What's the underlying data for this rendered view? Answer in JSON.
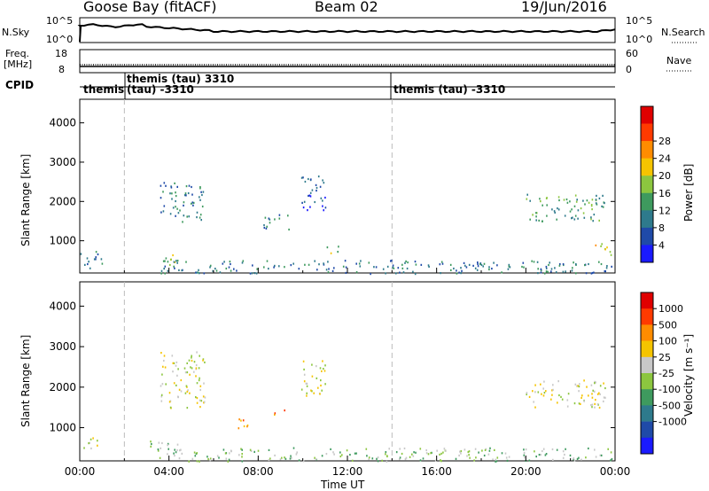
{
  "header": {
    "station": "Goose Bay (fitACF)",
    "beam": "Beam 02",
    "date": "19/Jun/2016"
  },
  "strips": {
    "nsky_label": "N.Sky",
    "nsky_ticks": [
      "10^5",
      "10^0"
    ],
    "nsearch_label": "N.Search",
    "nsearch_ticks": [
      "10^5",
      "10^0"
    ],
    "freq_label": "Freq.",
    "freq_unit": "[MHz]",
    "freq_ticks": [
      "18",
      "8"
    ],
    "nave_label": "Nave",
    "nave_ticks": [
      "60",
      "0"
    ],
    "cpid_label": "CPID",
    "cpid_segments": [
      "themis",
      "themis (tau) 3310",
      "(tau) -3310",
      "themis (tau) -3310"
    ]
  },
  "chart_data": [
    {
      "type": "heatmap",
      "panel": "power",
      "ylabel": "Slant Range [km]",
      "yticks": [
        1000,
        2000,
        3000,
        4000
      ],
      "ylim": [
        180,
        4600
      ],
      "xlim": [
        0,
        24
      ],
      "colorbar_label": "Power [dB]",
      "colorbar_ticks": [
        "4",
        "8",
        "12",
        "16",
        "20",
        "24",
        "28"
      ],
      "colors": [
        "#1a1aff",
        "#1f4aa8",
        "#2e7a8c",
        "#3e9a5e",
        "#8cc63f",
        "#f5c400",
        "#ff8c00",
        "#ff3a00",
        "#e00000"
      ],
      "regions": [
        {
          "t0": 3.6,
          "t1": 5.6,
          "r0": 1500,
          "r1": 2500,
          "level": 2
        },
        {
          "t0": 3.7,
          "t1": 4.4,
          "r0": 350,
          "r1": 700,
          "level": 4
        },
        {
          "t0": 8.2,
          "t1": 9.4,
          "r0": 1300,
          "r1": 1700,
          "level": 2
        },
        {
          "t0": 9.8,
          "t1": 11.0,
          "r0": 1800,
          "r1": 2700,
          "level": 1
        },
        {
          "t0": 11.0,
          "t1": 11.6,
          "r0": 700,
          "r1": 950,
          "level": 4
        },
        {
          "t0": 20.0,
          "t1": 23.6,
          "r0": 1500,
          "r1": 2200,
          "level": 3
        },
        {
          "t0": 22.8,
          "t1": 23.8,
          "r0": 650,
          "r1": 950,
          "level": 5
        },
        {
          "t0": 0.0,
          "t1": 1.0,
          "r0": 300,
          "r1": 750,
          "level": 2
        },
        {
          "t0": 3.5,
          "t1": 23.9,
          "r0": 180,
          "r1": 520,
          "level": 2
        }
      ]
    },
    {
      "type": "heatmap",
      "panel": "velocity",
      "ylabel": "Slant Range [km]",
      "xlabel": "Time UT",
      "xticks": [
        "00:00",
        "04:00",
        "08:00",
        "12:00",
        "16:00",
        "20:00",
        "00:00"
      ],
      "yticks": [
        1000,
        2000,
        3000,
        4000
      ],
      "ylim": [
        180,
        4600
      ],
      "xlim": [
        0,
        24
      ],
      "colorbar_label": "Velocity [m s⁻¹]",
      "colorbar_ticks": [
        "1000",
        "500",
        "100",
        "25",
        "-25",
        "-100",
        "-500",
        "-1000"
      ],
      "colors": [
        "#1a1aff",
        "#1f4aa8",
        "#2e7a8c",
        "#3e9a5e",
        "#8cc63f",
        "#c8c8c8",
        "#f5c400",
        "#ff8c00",
        "#ff3a00",
        "#e00000"
      ],
      "regions": [
        {
          "t0": 3.6,
          "t1": 5.6,
          "r0": 1500,
          "r1": 2900,
          "level": 5
        },
        {
          "t0": 7.0,
          "t1": 7.8,
          "r0": 1000,
          "r1": 1300,
          "level": 7
        },
        {
          "t0": 8.6,
          "t1": 9.2,
          "r0": 1300,
          "r1": 1500,
          "level": 7
        },
        {
          "t0": 9.8,
          "t1": 11.0,
          "r0": 1800,
          "r1": 2700,
          "level": 5
        },
        {
          "t0": 20.0,
          "t1": 23.6,
          "r0": 1500,
          "r1": 2200,
          "level": 5
        },
        {
          "t0": 3.0,
          "t1": 4.5,
          "r0": 400,
          "r1": 700,
          "level": 4
        },
        {
          "t0": 0.0,
          "t1": 1.0,
          "r0": 500,
          "r1": 800,
          "level": 5
        },
        {
          "t0": 3.5,
          "t1": 23.9,
          "r0": 180,
          "r1": 520,
          "level": 4
        }
      ]
    }
  ]
}
